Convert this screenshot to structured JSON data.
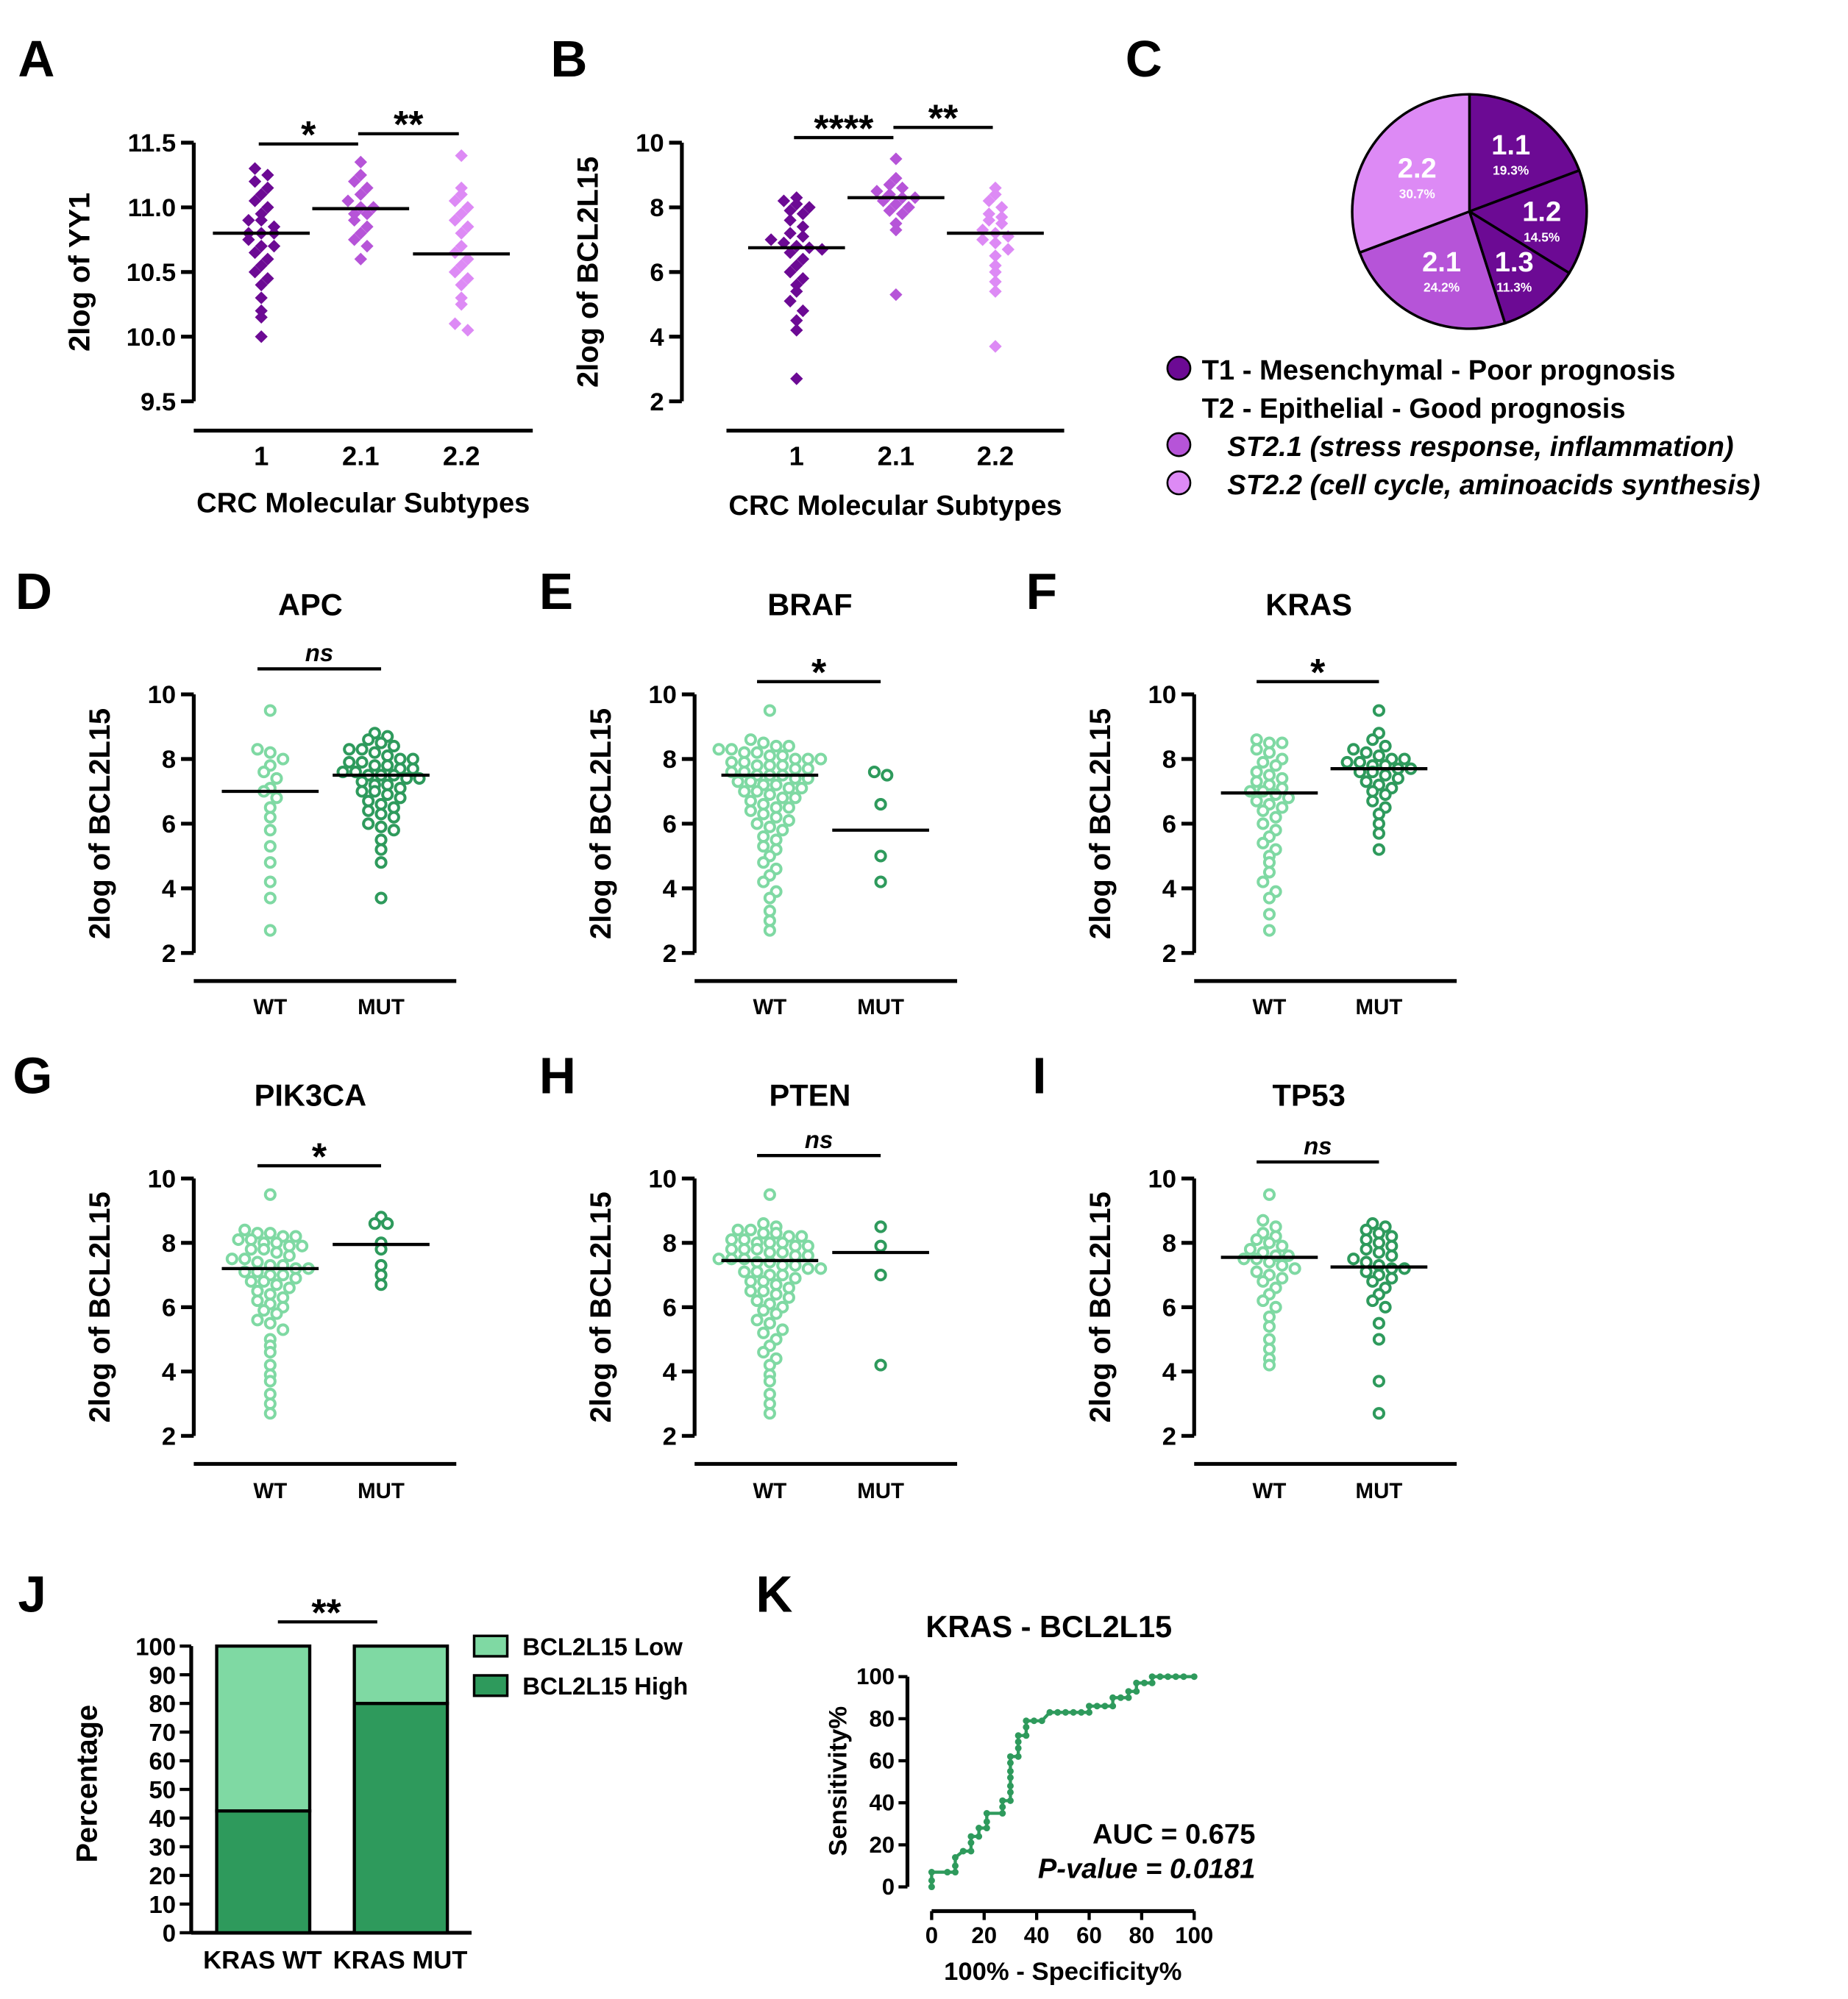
{
  "colors": {
    "purple_dark": "#6c0a94",
    "purple_mid": "#b654d8",
    "purple_light": "#dd8af5",
    "green_light": "#7fd9a3",
    "green_dark": "#2e9a5c"
  },
  "chart_data": [
    {
      "id": "A",
      "type": "scatter",
      "letter": "A",
      "title": "",
      "ylabel": "2log of YY1",
      "xlabel": "CRC Molecular Subtypes",
      "ylim": [
        9.5,
        11.5
      ],
      "yticks": [
        "9.5",
        "10.0",
        "10.5",
        "11.0",
        "11.5"
      ],
      "categories": [
        "1",
        "2.1",
        "2.2"
      ],
      "marker": "diamond",
      "groups": [
        {
          "color": "#6c0a94",
          "median": 10.8,
          "values": [
            11.3,
            11.25,
            11.2,
            11.15,
            11.1,
            11.05,
            11.0,
            10.95,
            10.9,
            10.9,
            10.85,
            10.8,
            10.8,
            10.8,
            10.75,
            10.7,
            10.7,
            10.65,
            10.6,
            10.55,
            10.5,
            10.45,
            10.4,
            10.3,
            10.2,
            10.15,
            10.0
          ]
        },
        {
          "color": "#b654d8",
          "median": 10.99,
          "values": [
            11.35,
            11.25,
            11.2,
            11.15,
            11.1,
            11.05,
            11.0,
            11.0,
            10.95,
            10.95,
            10.9,
            10.85,
            10.8,
            10.75,
            10.7,
            10.6
          ]
        },
        {
          "color": "#dd8af5",
          "median": 10.64,
          "values": [
            11.4,
            11.15,
            11.1,
            11.05,
            11.0,
            10.95,
            10.9,
            10.85,
            10.8,
            10.7,
            10.65,
            10.6,
            10.55,
            10.5,
            10.45,
            10.4,
            10.3,
            10.25,
            10.1,
            10.05
          ]
        }
      ],
      "significance": [
        {
          "from": 0,
          "to": 1,
          "label": "*"
        },
        {
          "from": 1,
          "to": 2,
          "label": "**"
        }
      ]
    },
    {
      "id": "B",
      "type": "scatter",
      "letter": "B",
      "title": "",
      "ylabel": "2log of BCL2L15",
      "xlabel": "CRC Molecular Subtypes",
      "ylim": [
        2,
        10
      ],
      "yticks": [
        "2",
        "4",
        "6",
        "8",
        "10"
      ],
      "categories": [
        "1",
        "2.1",
        "2.2"
      ],
      "marker": "diamond",
      "groups": [
        {
          "color": "#6c0a94",
          "median": 6.75,
          "values": [
            8.3,
            8.2,
            8.1,
            8.0,
            7.9,
            7.8,
            7.6,
            7.4,
            7.2,
            7.1,
            7.0,
            6.9,
            6.8,
            6.75,
            6.7,
            6.6,
            6.4,
            6.2,
            6.0,
            5.8,
            5.6,
            5.4,
            5.1,
            4.8,
            4.5,
            4.2,
            2.7
          ]
        },
        {
          "color": "#b654d8",
          "median": 8.3,
          "values": [
            9.5,
            8.9,
            8.7,
            8.6,
            8.5,
            8.4,
            8.3,
            8.3,
            8.2,
            8.1,
            8.0,
            7.9,
            7.8,
            7.5,
            7.3,
            5.3
          ]
        },
        {
          "color": "#dd8af5",
          "median": 7.2,
          "values": [
            8.6,
            8.4,
            8.2,
            8.0,
            7.8,
            7.7,
            7.6,
            7.5,
            7.3,
            7.2,
            7.1,
            7.0,
            6.9,
            6.7,
            6.5,
            6.2,
            6.0,
            5.7,
            5.4,
            3.7
          ]
        }
      ],
      "significance": [
        {
          "from": 0,
          "to": 1,
          "label": "****"
        },
        {
          "from": 1,
          "to": 2,
          "label": "**"
        }
      ]
    },
    {
      "id": "C",
      "type": "pie",
      "letter": "C",
      "slices": [
        {
          "label": "1.1",
          "value": 19.3,
          "pct": "19.3%",
          "color": "#6c0a94"
        },
        {
          "label": "1.2",
          "value": 14.5,
          "pct": "14.5%",
          "color": "#6c0a94"
        },
        {
          "label": "1.3",
          "value": 11.3,
          "pct": "11.3%",
          "color": "#6c0a94"
        },
        {
          "label": "2.1",
          "value": 24.2,
          "pct": "24.2%",
          "color": "#b654d8"
        },
        {
          "label": "2.2",
          "value": 30.7,
          "pct": "30.7%",
          "color": "#dd8af5"
        }
      ],
      "legend": [
        {
          "text": "T1 - Mesenchymal   - Poor prognosis",
          "color": "#6c0a94",
          "italic": false
        },
        {
          "text": "T2 - Epithelial   - Good prognosis",
          "color": null,
          "italic": false
        },
        {
          "text": "ST2.1 (stress response, inflammation)",
          "color": "#b654d8",
          "italic": true
        },
        {
          "text": "ST2.2 (cell cycle, aminoacids  synthesis)",
          "color": "#dd8af5",
          "italic": true
        }
      ]
    },
    {
      "id": "D",
      "type": "scatter",
      "letter": "D",
      "title": "APC",
      "ylabel": "2log of BCL2L15",
      "xlabel": "",
      "ylim": [
        2,
        10
      ],
      "yticks": [
        "2",
        "4",
        "6",
        "8",
        "10"
      ],
      "categories": [
        "WT",
        "MUT"
      ],
      "marker": "circle",
      "groups": [
        {
          "color": "#7fd9a3",
          "median": 7.0,
          "values": [
            9.5,
            8.3,
            8.2,
            8.0,
            7.8,
            7.6,
            7.4,
            7.1,
            7.0,
            6.8,
            6.5,
            6.2,
            5.8,
            5.3,
            4.8,
            4.2,
            3.7,
            2.7
          ]
        },
        {
          "color": "#2e9a5c",
          "median": 7.5,
          "values": [
            8.8,
            8.7,
            8.6,
            8.5,
            8.4,
            8.3,
            8.3,
            8.2,
            8.1,
            8.0,
            8.0,
            7.9,
            7.9,
            7.8,
            7.8,
            7.7,
            7.7,
            7.6,
            7.6,
            7.5,
            7.5,
            7.5,
            7.4,
            7.4,
            7.3,
            7.2,
            7.2,
            7.1,
            7.0,
            7.0,
            6.9,
            6.8,
            6.7,
            6.6,
            6.5,
            6.4,
            6.3,
            6.2,
            6.0,
            5.9,
            5.8,
            5.5,
            5.2,
            4.8,
            3.7
          ]
        }
      ],
      "significance": [
        {
          "from": 0,
          "to": 1,
          "label": "ns",
          "italic": true
        }
      ]
    },
    {
      "id": "E",
      "type": "scatter",
      "letter": "E",
      "title": "BRAF",
      "ylabel": "2log of BCL2L15",
      "xlabel": "",
      "ylim": [
        2,
        10
      ],
      "yticks": [
        "2",
        "4",
        "6",
        "8",
        "10"
      ],
      "categories": [
        "WT",
        "MUT"
      ],
      "marker": "circle",
      "groups": [
        {
          "color": "#7fd9a3",
          "median": 7.5,
          "values": [
            9.5,
            8.6,
            8.5,
            8.4,
            8.4,
            8.3,
            8.3,
            8.2,
            8.2,
            8.1,
            8.1,
            8.0,
            8.0,
            8.0,
            7.9,
            7.9,
            7.8,
            7.8,
            7.8,
            7.7,
            7.7,
            7.6,
            7.6,
            7.5,
            7.5,
            7.5,
            7.4,
            7.4,
            7.3,
            7.3,
            7.2,
            7.2,
            7.1,
            7.1,
            7.0,
            7.0,
            6.9,
            6.8,
            6.8,
            6.7,
            6.6,
            6.5,
            6.5,
            6.4,
            6.3,
            6.2,
            6.1,
            6.0,
            5.9,
            5.8,
            5.6,
            5.5,
            5.3,
            5.2,
            5.0,
            4.8,
            4.6,
            4.4,
            4.2,
            3.9,
            3.7,
            3.3,
            3.0,
            2.7
          ]
        },
        {
          "color": "#2e9a5c",
          "median": 5.8,
          "values": [
            7.6,
            7.5,
            6.6,
            5.0,
            4.2
          ]
        }
      ],
      "significance": [
        {
          "from": 0,
          "to": 1,
          "label": "*"
        }
      ]
    },
    {
      "id": "F",
      "type": "scatter",
      "letter": "F",
      "title": "KRAS",
      "ylabel": "2log of BCL2L15",
      "xlabel": "",
      "ylim": [
        2,
        10
      ],
      "yticks": [
        "2",
        "4",
        "6",
        "8",
        "10"
      ],
      "categories": [
        "WT",
        "MUT"
      ],
      "marker": "circle",
      "groups": [
        {
          "color": "#7fd9a3",
          "median": 6.95,
          "values": [
            8.6,
            8.5,
            8.5,
            8.3,
            8.2,
            8.0,
            7.9,
            7.8,
            7.6,
            7.5,
            7.4,
            7.3,
            7.2,
            7.1,
            7.0,
            7.0,
            6.9,
            6.8,
            6.7,
            6.6,
            6.5,
            6.4,
            6.2,
            6.0,
            5.8,
            5.6,
            5.4,
            5.2,
            5.0,
            4.8,
            4.5,
            4.2,
            3.9,
            3.7,
            3.2,
            2.7
          ]
        },
        {
          "color": "#2e9a5c",
          "median": 7.7,
          "values": [
            9.5,
            8.8,
            8.6,
            8.4,
            8.3,
            8.2,
            8.1,
            8.0,
            8.0,
            7.9,
            7.9,
            7.8,
            7.8,
            7.7,
            7.7,
            7.6,
            7.6,
            7.5,
            7.4,
            7.3,
            7.2,
            7.1,
            7.0,
            6.9,
            6.7,
            6.5,
            6.3,
            6.0,
            5.7,
            5.2
          ]
        }
      ],
      "significance": [
        {
          "from": 0,
          "to": 1,
          "label": "*"
        }
      ]
    },
    {
      "id": "G",
      "type": "scatter",
      "letter": "G",
      "title": "PIK3CA",
      "ylabel": "2log of BCL2L15",
      "xlabel": "",
      "ylim": [
        2,
        10
      ],
      "yticks": [
        "2",
        "4",
        "6",
        "8",
        "10"
      ],
      "categories": [
        "WT",
        "MUT"
      ],
      "marker": "circle",
      "groups": [
        {
          "color": "#7fd9a3",
          "median": 7.2,
          "values": [
            9.5,
            8.4,
            8.3,
            8.3,
            8.2,
            8.2,
            8.1,
            8.1,
            8.0,
            8.0,
            7.9,
            7.9,
            7.8,
            7.8,
            7.7,
            7.6,
            7.5,
            7.5,
            7.4,
            7.3,
            7.3,
            7.2,
            7.2,
            7.1,
            7.1,
            7.0,
            7.0,
            6.9,
            6.8,
            6.8,
            6.7,
            6.6,
            6.5,
            6.4,
            6.3,
            6.2,
            6.1,
            6.0,
            5.9,
            5.8,
            5.6,
            5.5,
            5.3,
            5.0,
            4.8,
            4.6,
            4.2,
            3.9,
            3.7,
            3.3,
            3.0,
            2.7
          ]
        },
        {
          "color": "#2e9a5c",
          "median": 7.95,
          "values": [
            8.8,
            8.6,
            8.6,
            8.0,
            7.8,
            7.3,
            7.0,
            6.7
          ]
        }
      ],
      "significance": [
        {
          "from": 0,
          "to": 1,
          "label": "*"
        }
      ]
    },
    {
      "id": "H",
      "type": "scatter",
      "letter": "H",
      "title": "PTEN",
      "ylabel": "2log of BCL2L15",
      "xlabel": "",
      "ylim": [
        2,
        10
      ],
      "yticks": [
        "2",
        "4",
        "6",
        "8",
        "10"
      ],
      "categories": [
        "WT",
        "MUT"
      ],
      "marker": "circle",
      "groups": [
        {
          "color": "#7fd9a3",
          "median": 7.45,
          "values": [
            9.5,
            8.6,
            8.5,
            8.4,
            8.4,
            8.3,
            8.3,
            8.2,
            8.2,
            8.1,
            8.1,
            8.0,
            8.0,
            8.0,
            7.9,
            7.9,
            7.8,
            7.8,
            7.8,
            7.7,
            7.7,
            7.6,
            7.6,
            7.5,
            7.5,
            7.5,
            7.4,
            7.4,
            7.3,
            7.3,
            7.2,
            7.2,
            7.1,
            7.1,
            7.0,
            7.0,
            6.9,
            6.8,
            6.8,
            6.7,
            6.6,
            6.5,
            6.5,
            6.4,
            6.3,
            6.2,
            6.1,
            6.0,
            5.9,
            5.8,
            5.6,
            5.5,
            5.3,
            5.2,
            5.0,
            4.8,
            4.6,
            4.4,
            4.2,
            3.9,
            3.7,
            3.3,
            3.0,
            2.7
          ]
        },
        {
          "color": "#2e9a5c",
          "median": 7.7,
          "values": [
            8.5,
            7.9,
            7.0,
            4.2
          ]
        }
      ],
      "significance": [
        {
          "from": 0,
          "to": 1,
          "label": "ns",
          "italic": true
        }
      ]
    },
    {
      "id": "I",
      "type": "scatter",
      "letter": "I",
      "title": "TP53",
      "ylabel": "2log of BCL2L15",
      "xlabel": "",
      "ylim": [
        2,
        10
      ],
      "yticks": [
        "2",
        "4",
        "6",
        "8",
        "10"
      ],
      "categories": [
        "WT",
        "MUT"
      ],
      "marker": "circle",
      "groups": [
        {
          "color": "#7fd9a3",
          "median": 7.55,
          "values": [
            9.5,
            8.7,
            8.5,
            8.3,
            8.2,
            8.1,
            8.0,
            7.9,
            7.8,
            7.7,
            7.6,
            7.6,
            7.5,
            7.5,
            7.4,
            7.3,
            7.2,
            7.1,
            7.0,
            6.9,
            6.8,
            6.6,
            6.4,
            6.2,
            6.0,
            5.7,
            5.4,
            5.0,
            4.7,
            4.4,
            4.2
          ]
        },
        {
          "color": "#2e9a5c",
          "median": 7.25,
          "values": [
            8.6,
            8.5,
            8.4,
            8.3,
            8.2,
            8.1,
            8.0,
            7.9,
            7.8,
            7.7,
            7.6,
            7.5,
            7.4,
            7.3,
            7.2,
            7.2,
            7.1,
            7.0,
            6.9,
            6.8,
            6.6,
            6.4,
            6.2,
            6.0,
            5.5,
            5.0,
            3.7,
            2.7
          ]
        }
      ],
      "significance": [
        {
          "from": 0,
          "to": 1,
          "label": "ns",
          "italic": true
        }
      ]
    },
    {
      "id": "J",
      "type": "bar",
      "letter": "J",
      "stacked": true,
      "ylabel": "Percentage",
      "ylim": [
        0,
        100
      ],
      "yticks": [
        "0",
        "10",
        "20",
        "30",
        "40",
        "50",
        "60",
        "70",
        "80",
        "90",
        "100"
      ],
      "categories": [
        "KRAS WT",
        "KRAS MUT"
      ],
      "series": [
        {
          "name": "BCL2L15 High",
          "color": "#2e9a5c",
          "values": [
            42.5,
            80
          ]
        },
        {
          "name": "BCL2L15 Low",
          "color": "#7fd9a3",
          "values": [
            57.5,
            20
          ]
        }
      ],
      "legend_order": [
        "BCL2L15 Low",
        "BCL2L15 High"
      ],
      "legend": "top-right",
      "significance": [
        {
          "from": 0,
          "to": 1,
          "label": "**"
        }
      ]
    },
    {
      "id": "K",
      "type": "line",
      "letter": "K",
      "title": "KRAS - BCL2L15",
      "xlabel": "100% - Specificity%",
      "ylabel": "Sensitivity%",
      "xlim": [
        0,
        100
      ],
      "ylim": [
        0,
        100
      ],
      "xticks": [
        "0",
        "20",
        "40",
        "60",
        "80",
        "100"
      ],
      "yticks": [
        "0",
        "20",
        "40",
        "60",
        "80",
        "100"
      ],
      "color": "#2e9a5c",
      "x": [
        0,
        0,
        0,
        6,
        9,
        9,
        9,
        12,
        15,
        15,
        15,
        18,
        18,
        21,
        21,
        21,
        27,
        27,
        27,
        30,
        30,
        30,
        30,
        30,
        30,
        30,
        33,
        33,
        33,
        33,
        36,
        36,
        36,
        39,
        42,
        45,
        48,
        51,
        54,
        57,
        60,
        60,
        63,
        66,
        69,
        69,
        72,
        75,
        75,
        78,
        78,
        81,
        84,
        84,
        87,
        90,
        93,
        96,
        100
      ],
      "y": [
        0,
        3,
        7,
        7,
        7,
        10,
        14,
        17,
        17,
        21,
        24,
        24,
        28,
        28,
        31,
        35,
        35,
        38,
        41,
        41,
        45,
        48,
        52,
        55,
        59,
        62,
        62,
        66,
        69,
        72,
        72,
        76,
        79,
        79,
        79,
        83,
        83,
        83,
        83,
        83,
        83,
        86,
        86,
        86,
        86,
        90,
        90,
        90,
        93,
        93,
        97,
        97,
        97,
        100,
        100,
        100,
        100,
        100,
        100
      ],
      "annotations": [
        "AUC = 0.675",
        "P-value = 0.0181"
      ]
    }
  ]
}
